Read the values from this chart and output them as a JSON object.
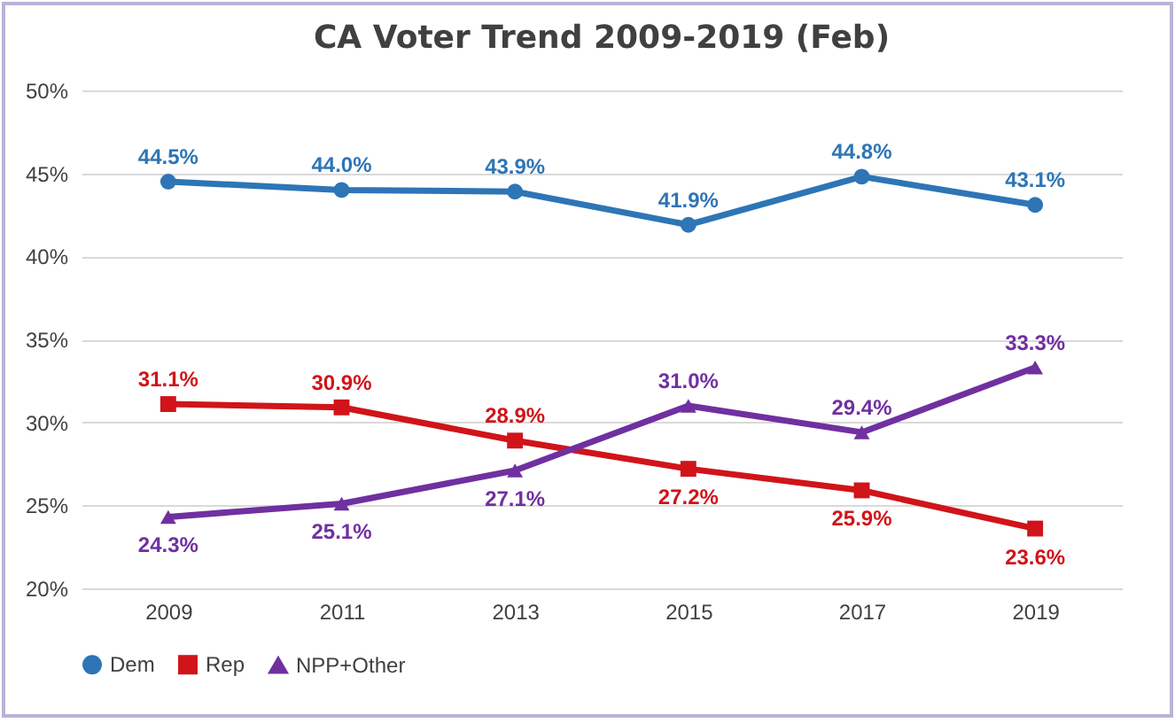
{
  "chart_data": {
    "type": "line",
    "title": "CA Voter Trend 2009-2019 (Feb)",
    "categories": [
      "2009",
      "2011",
      "2013",
      "2015",
      "2017",
      "2019"
    ],
    "series": [
      {
        "name": "Dem",
        "color": "#2e75b6",
        "marker": "circle",
        "values": [
          44.5,
          44.0,
          43.9,
          41.9,
          44.8,
          43.1
        ],
        "value_labels": [
          "44.5%",
          "44.0%",
          "43.9%",
          "41.9%",
          "44.8%",
          "43.1%"
        ]
      },
      {
        "name": "Rep",
        "color": "#d0141a",
        "marker": "square",
        "values": [
          31.1,
          30.9,
          28.9,
          27.2,
          25.9,
          23.6
        ],
        "value_labels": [
          "31.1%",
          "30.9%",
          "28.9%",
          "27.2%",
          "25.9%",
          "23.6%"
        ]
      },
      {
        "name": "NPP+Other",
        "color": "#7030a0",
        "marker": "triangle",
        "values": [
          24.3,
          25.1,
          27.1,
          31.0,
          29.4,
          33.3
        ],
        "value_labels": [
          "24.3%",
          "25.1%",
          "27.1%",
          "31.0%",
          "29.4%",
          "33.3%"
        ]
      }
    ],
    "ylim": [
      20,
      50
    ],
    "yticks": [
      {
        "value": 20,
        "label": "20%"
      },
      {
        "value": 25,
        "label": "25%"
      },
      {
        "value": 30,
        "label": "30%"
      },
      {
        "value": 35,
        "label": "35%"
      },
      {
        "value": 40,
        "label": "40%"
      },
      {
        "value": 45,
        "label": "45%"
      },
      {
        "value": 50,
        "label": "50%"
      }
    ],
    "grid": "y",
    "legend": "bottom",
    "line_style": "solid"
  }
}
